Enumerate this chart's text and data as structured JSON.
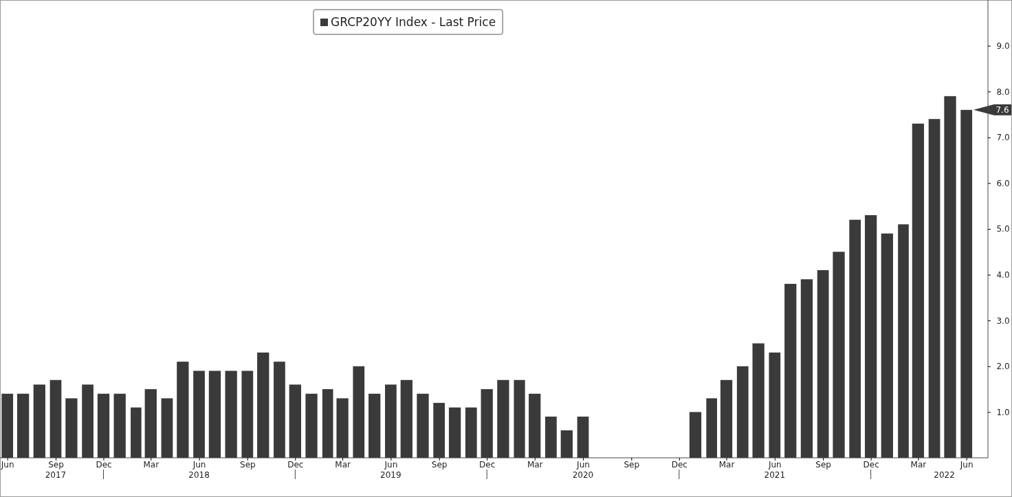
{
  "chart_data": {
    "type": "bar",
    "x": [
      "2017-06",
      "2017-07",
      "2017-08",
      "2017-09",
      "2017-10",
      "2017-11",
      "2017-12",
      "2018-01",
      "2018-02",
      "2018-03",
      "2018-04",
      "2018-05",
      "2018-06",
      "2018-07",
      "2018-08",
      "2018-09",
      "2018-10",
      "2018-11",
      "2018-12",
      "2019-01",
      "2019-02",
      "2019-03",
      "2019-04",
      "2019-05",
      "2019-06",
      "2019-07",
      "2019-08",
      "2019-09",
      "2019-10",
      "2019-11",
      "2019-12",
      "2020-01",
      "2020-02",
      "2020-03",
      "2020-04",
      "2020-05",
      "2020-06",
      "2020-07",
      "2020-08",
      "2020-09",
      "2020-10",
      "2020-11",
      "2020-12",
      "2021-01",
      "2021-02",
      "2021-03",
      "2021-04",
      "2021-05",
      "2021-06",
      "2021-07",
      "2021-08",
      "2021-09",
      "2021-10",
      "2021-11",
      "2021-12",
      "2022-01",
      "2022-02",
      "2022-03",
      "2022-04",
      "2022-05",
      "2022-06"
    ],
    "series": [
      {
        "name": "GRCP20YY Index - Last Price",
        "color": "#3a3a3a",
        "values": [
          1.4,
          1.4,
          1.6,
          1.7,
          1.3,
          1.6,
          1.4,
          1.4,
          1.1,
          1.5,
          1.3,
          2.1,
          1.9,
          1.9,
          1.9,
          1.9,
          2.3,
          2.1,
          1.6,
          1.4,
          1.5,
          1.3,
          2.0,
          1.4,
          1.6,
          1.7,
          1.4,
          1.2,
          1.1,
          1.1,
          1.5,
          1.7,
          1.7,
          1.4,
          0.9,
          0.6,
          0.9,
          null,
          null,
          null,
          null,
          null,
          null,
          1.0,
          1.3,
          1.7,
          2.0,
          2.5,
          2.3,
          3.8,
          3.9,
          4.1,
          4.5,
          5.2,
          5.3,
          4.9,
          5.1,
          7.3,
          7.4,
          7.9,
          7.6
        ],
        "value_labels": [
          null,
          null,
          null,
          null,
          null,
          null,
          null,
          null,
          null,
          null,
          null,
          null,
          null,
          null,
          null,
          null,
          null,
          null,
          null,
          null,
          null,
          null,
          null,
          null,
          null,
          null,
          null,
          null,
          null,
          null,
          null,
          null,
          null,
          null,
          null,
          null,
          null,
          null,
          null,
          null,
          null,
          null,
          null,
          null,
          null,
          null,
          null,
          null,
          null,
          null,
          null,
          null,
          null,
          null,
          null,
          null,
          null,
          null,
          null,
          null,
          "7.6"
        ]
      }
    ],
    "xlim": [
      "2017-05-18",
      "2022-07-12"
    ],
    "xticks": [
      {
        "value": "2017-06",
        "label": "Jun"
      },
      {
        "value": "2017-09",
        "label": "Sep"
      },
      {
        "value": "2017-12",
        "label": "Dec"
      },
      {
        "value": "2018-03",
        "label": "Mar"
      },
      {
        "value": "2018-06",
        "label": "Jun"
      },
      {
        "value": "2018-09",
        "label": "Sep"
      },
      {
        "value": "2018-12",
        "label": "Dec"
      },
      {
        "value": "2019-03",
        "label": "Mar"
      },
      {
        "value": "2019-06",
        "label": "Jun"
      },
      {
        "value": "2019-09",
        "label": "Sep"
      },
      {
        "value": "2019-12",
        "label": "Dec"
      },
      {
        "value": "2020-03",
        "label": "Mar"
      },
      {
        "value": "2020-06",
        "label": "Jun"
      },
      {
        "value": "2020-09",
        "label": "Sep"
      },
      {
        "value": "2020-12",
        "label": "Dec"
      },
      {
        "value": "2021-03",
        "label": "Mar"
      },
      {
        "value": "2021-06",
        "label": "Jun"
      },
      {
        "value": "2021-09",
        "label": "Sep"
      },
      {
        "value": "2021-12",
        "label": "Dec"
      },
      {
        "value": "2022-03",
        "label": "Mar"
      },
      {
        "value": "2022-06",
        "label": "Jun"
      }
    ],
    "x2lim": [
      "2017-05-18",
      "2022-07-12"
    ],
    "x2ticks": [
      {
        "value": "2017-09",
        "label": "2017"
      },
      {
        "value": "2017-12",
        "label": null
      },
      {
        "value": "2018-06",
        "label": "2018"
      },
      {
        "value": "2018-12",
        "label": null
      },
      {
        "value": "2019-06",
        "label": "2019"
      },
      {
        "value": "2019-12",
        "label": null
      },
      {
        "value": "2020-06",
        "label": "2020"
      },
      {
        "value": "2020-12",
        "label": null
      },
      {
        "value": "2021-06",
        "label": "2021"
      },
      {
        "value": "2021-12",
        "label": null
      },
      {
        "value": "2022-04-20",
        "label": "2022"
      }
    ],
    "ylim": [
      0,
      10
    ],
    "yticks": [
      {
        "value": 1,
        "label": "1.0"
      },
      {
        "value": 2,
        "label": "2.0"
      },
      {
        "value": 3,
        "label": "3.0"
      },
      {
        "value": 4,
        "label": "4.0"
      },
      {
        "value": 5,
        "label": "5.0"
      },
      {
        "value": 6,
        "label": "6.0"
      },
      {
        "value": 7,
        "label": "7.0"
      },
      {
        "value": 8,
        "label": "8.0"
      },
      {
        "value": 9,
        "label": "9.0"
      }
    ],
    "legend": "top"
  }
}
